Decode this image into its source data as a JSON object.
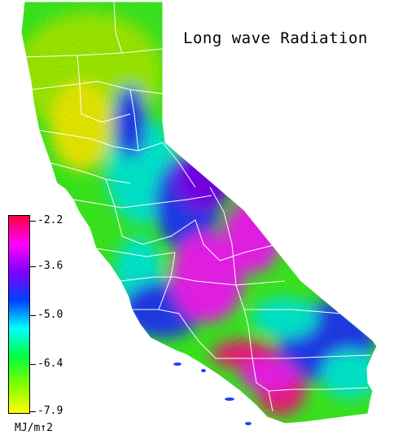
{
  "title": "Long wave Radiation",
  "legend": {
    "labels": [
      "-2.2",
      "-3.6",
      "-5.0",
      "-6.4",
      "-7.9"
    ],
    "unit": "MJ/m↑2",
    "colors": [
      "#ff0040",
      "#ff00ff",
      "#7f00ff",
      "#0040ff",
      "#00ffff",
      "#00ff40",
      "#7fff00",
      "#ffff00"
    ]
  },
  "map": {
    "region": "california",
    "colors": {
      "yellow": "#ffff00",
      "yellow_green": "#aaff00",
      "green": "#40ff20",
      "cyan": "#00ffe0",
      "blue": "#2040ff",
      "violet": "#8000ff",
      "magenta": "#ff20ff",
      "pink": "#ff2080",
      "border": "#ffffff"
    }
  }
}
